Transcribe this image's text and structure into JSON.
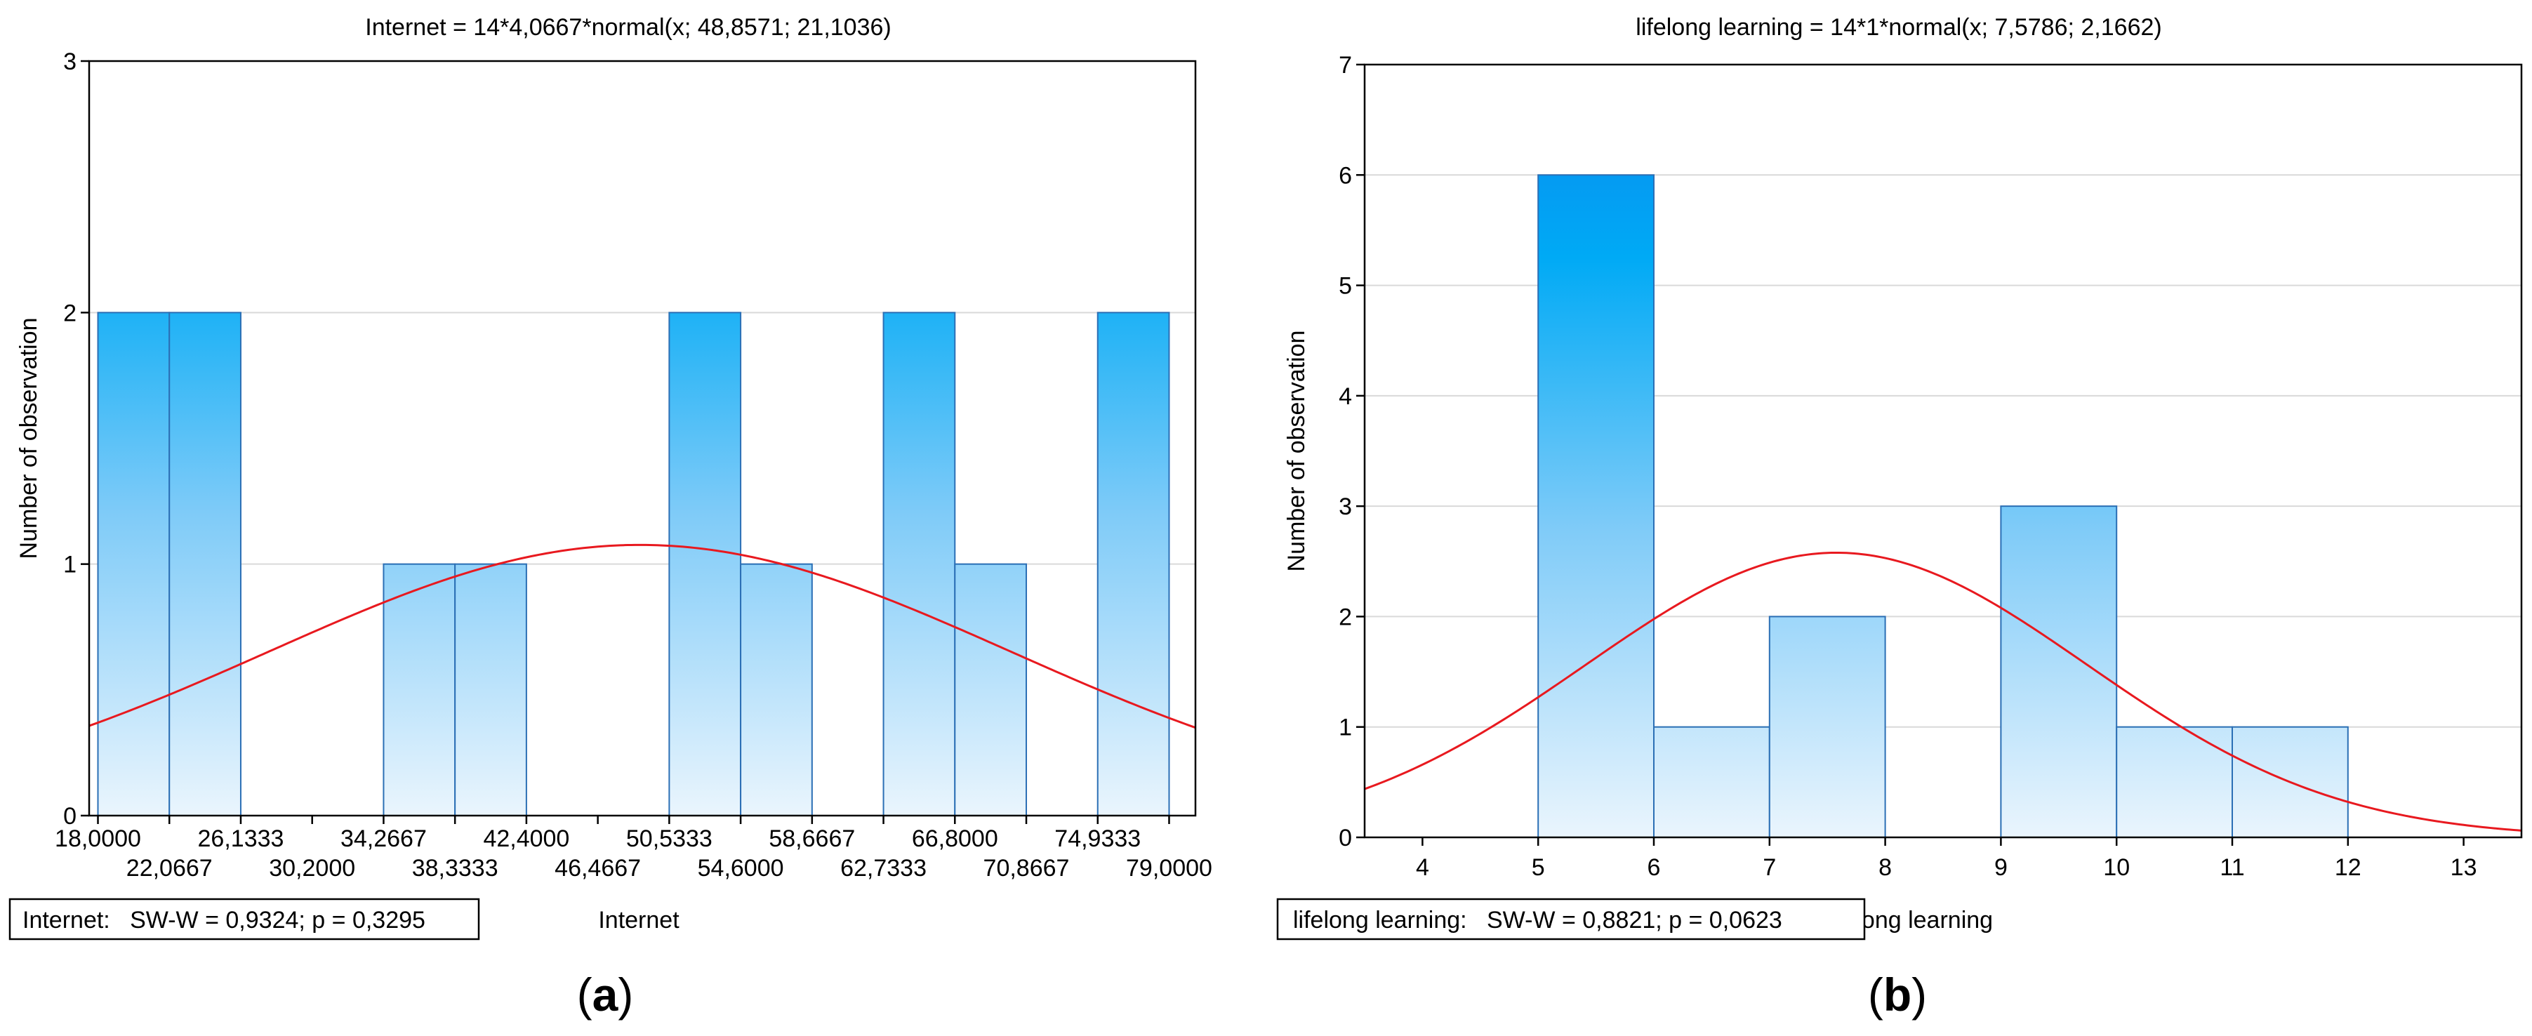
{
  "figure": {
    "panel_a_label": "(a)",
    "panel_b_label": "(b)"
  },
  "chart_data": [
    {
      "type": "bar",
      "title": "Internet = 14*4,0667*normal(x; 48,8571; 21,1036)",
      "xlabel": "Internet",
      "ylabel": "Number of observation",
      "stats_box": "Internet:   SW-W = 0,9324; p = 0,3295",
      "bin_edges": [
        18.0,
        22.0667,
        26.1333,
        30.2,
        34.2667,
        38.3333,
        42.4,
        46.4667,
        50.5333,
        54.6,
        58.6667,
        62.7333,
        66.8,
        70.8667,
        74.9333,
        79.0
      ],
      "counts": [
        2,
        2,
        0,
        0,
        1,
        1,
        0,
        0,
        2,
        1,
        0,
        2,
        1,
        0,
        2
      ],
      "tick_labels_top": [
        "18,0000",
        "26,1333",
        "34,2667",
        "42,4000",
        "50,5333",
        "58,6667",
        "66,8000",
        "74,9333"
      ],
      "tick_labels_bottom": [
        "22,0667",
        "30,2000",
        "38,3333",
        "46,4667",
        "54,6000",
        "62,7333",
        "70,8667",
        "79,0000"
      ],
      "xlim": [
        17.5,
        80.5
      ],
      "ylim": [
        0,
        3
      ],
      "yticks": [
        "0",
        "1",
        "2",
        "3"
      ],
      "normal_curve": {
        "n": 14,
        "bin_width": 4.0667,
        "mean": 48.8571,
        "sd": 21.1036
      },
      "grid": true,
      "colors": {
        "bar_top": "#0a8ff0",
        "bar_bottom": "#e8f4fd",
        "bar_edge": "#2b6fb5",
        "curve": "#e8191f"
      }
    },
    {
      "type": "bar",
      "title": "lifelong learning = 14*1*normal(x; 7,5786; 2,1662)",
      "xlabel": "lifelong learning",
      "ylabel": "Number of observation",
      "stats_box": "lifelong learning:   SW-W = 0,8821; p = 0,0623",
      "bin_edges": [
        5,
        6,
        7,
        8,
        9,
        10,
        11,
        12
      ],
      "counts": [
        6,
        1,
        2,
        0,
        3,
        1,
        1
      ],
      "xticks": [
        "4",
        "5",
        "6",
        "7",
        "8",
        "9",
        "10",
        "11",
        "12",
        "13"
      ],
      "xlim": [
        3.5,
        13.5
      ],
      "ylim": [
        0,
        7
      ],
      "yticks": [
        "0",
        "1",
        "2",
        "3",
        "4",
        "5",
        "6",
        "7"
      ],
      "normal_curve": {
        "n": 14,
        "bin_width": 1,
        "mean": 7.5786,
        "sd": 2.1662
      },
      "grid": true,
      "colors": {
        "bar_top": "#0a8ff0",
        "bar_bottom": "#e8f4fd",
        "bar_edge": "#2b6fb5",
        "curve": "#e8191f"
      }
    }
  ]
}
